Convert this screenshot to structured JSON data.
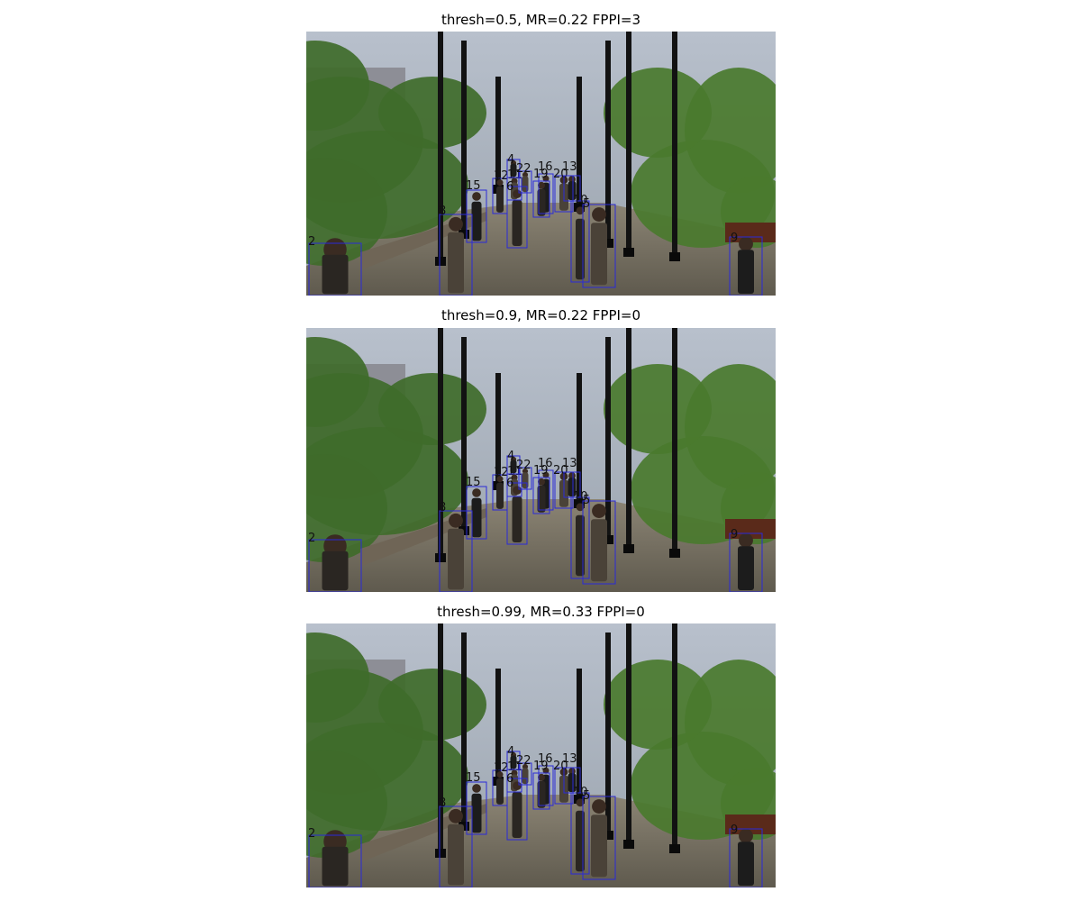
{
  "panels": [
    {
      "title": "thresh=0.5, MR=0.22 FPPI=3"
    },
    {
      "title": "thresh=0.9, MR=0.22 FPPI=0"
    },
    {
      "title": "thresh=0.99, MR=0.33 FPPI=0"
    }
  ],
  "boxes": [
    {
      "label": "2"
    },
    {
      "label": "8"
    },
    {
      "label": "15"
    },
    {
      "label": "12"
    },
    {
      "label": "11"
    },
    {
      "label": "4"
    },
    {
      "label": "6"
    },
    {
      "label": "22"
    },
    {
      "label": "16"
    },
    {
      "label": "19"
    },
    {
      "label": "20"
    },
    {
      "label": "13"
    },
    {
      "label": "10"
    },
    {
      "label": "5"
    },
    {
      "label": "9"
    }
  ],
  "colors": {
    "box": "#2a2ad8",
    "sky": "#aab2bf",
    "foliage": "#3f6b2a",
    "path": "#7f7768"
  }
}
